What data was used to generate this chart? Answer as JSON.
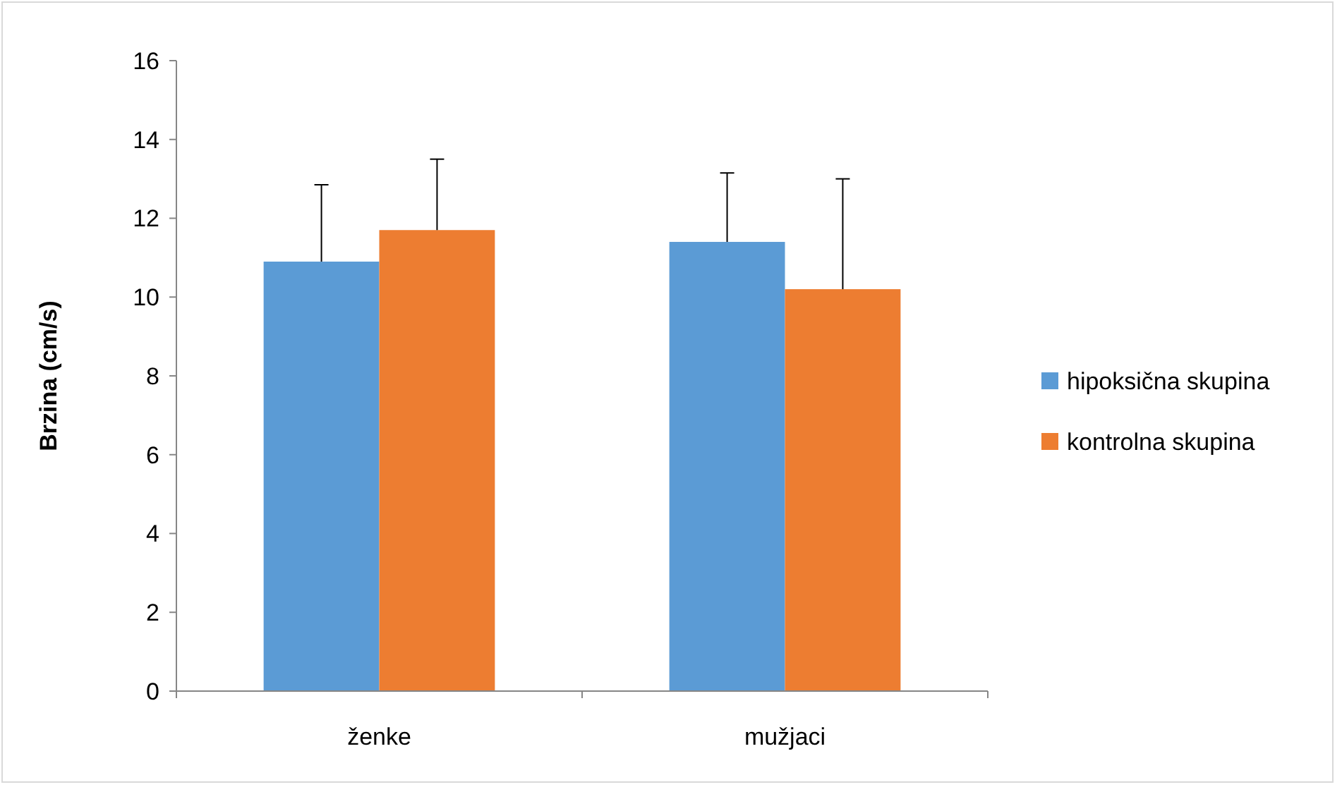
{
  "chart_data": {
    "type": "bar",
    "ylabel": "Brzina (cm/s)",
    "categories": [
      "ženke",
      "mužjaci"
    ],
    "series": [
      {
        "name": "hipoksična skupina",
        "color": "#5b9bd5",
        "values": [
          10.9,
          11.4
        ],
        "errors": [
          [
            10.9,
            12.85
          ],
          [
            11.4,
            13.15
          ]
        ]
      },
      {
        "name": "kontrolna skupina",
        "color": "#ed7d31",
        "values": [
          11.7,
          10.2
        ],
        "errors": [
          [
            11.7,
            13.5
          ],
          [
            10.2,
            13.0
          ]
        ]
      }
    ],
    "ylim": [
      0,
      16
    ],
    "yticks": [
      0,
      2,
      4,
      6,
      8,
      10,
      12,
      14,
      16
    ],
    "grid": false,
    "legend": "right"
  }
}
